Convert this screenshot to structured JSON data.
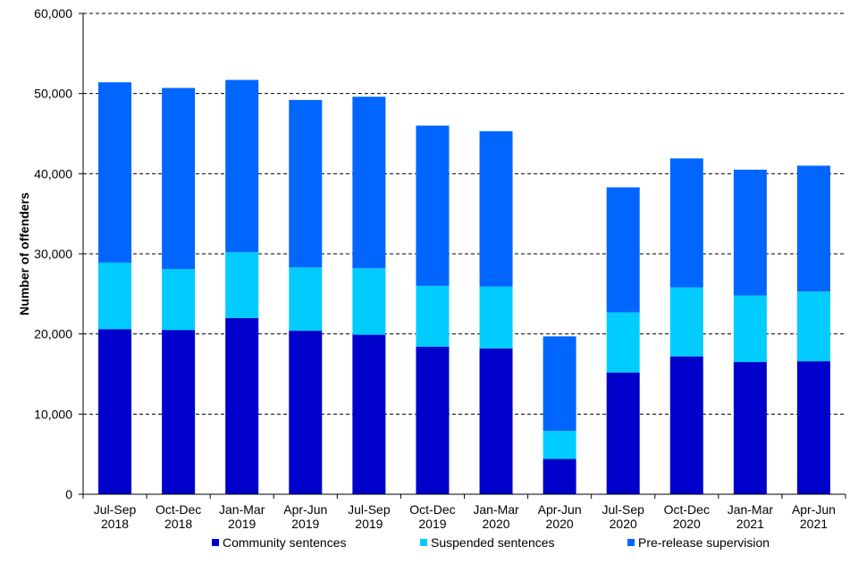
{
  "chart_data": {
    "type": "bar",
    "stacked": true,
    "title": "",
    "xlabel": "",
    "ylabel": "Number of offenders",
    "ylim": [
      0,
      60000
    ],
    "yticks": [
      0,
      10000,
      20000,
      30000,
      40000,
      50000,
      60000
    ],
    "ytick_labels": [
      "0",
      "10,000",
      "20,000",
      "30,000",
      "40,000",
      "50,000",
      "60,000"
    ],
    "grid": "horizontal dashed",
    "legend_position": "bottom",
    "categories": [
      [
        "Jul-Sep",
        "2018"
      ],
      [
        "Oct-Dec",
        "2018"
      ],
      [
        "Jan-Mar",
        "2019"
      ],
      [
        "Apr-Jun",
        "2019"
      ],
      [
        "Jul-Sep",
        "2019"
      ],
      [
        "Oct-Dec",
        "2019"
      ],
      [
        "Jan-Mar",
        "2020"
      ],
      [
        "Apr-Jun",
        "2020"
      ],
      [
        "Jul-Sep",
        "2020"
      ],
      [
        "Oct-Dec",
        "2020"
      ],
      [
        "Jan-Mar",
        "2021"
      ],
      [
        "Apr-Jun",
        "2021"
      ]
    ],
    "series": [
      {
        "name": "Community sentences",
        "color": "#0000CC",
        "values": [
          20600,
          20500,
          22000,
          20400,
          19900,
          18400,
          18200,
          4400,
          15200,
          17200,
          16500,
          16600
        ]
      },
      {
        "name": "Suspended sentences",
        "color": "#00CCFF",
        "values": [
          8300,
          7600,
          8200,
          7900,
          8300,
          7600,
          7700,
          3500,
          7500,
          8600,
          8300,
          8700
        ]
      },
      {
        "name": "Pre-release supervision",
        "color": "#0066FF",
        "values": [
          22500,
          22600,
          21500,
          20900,
          21400,
          20000,
          19400,
          11800,
          15600,
          16100,
          15700,
          15700
        ]
      }
    ]
  }
}
